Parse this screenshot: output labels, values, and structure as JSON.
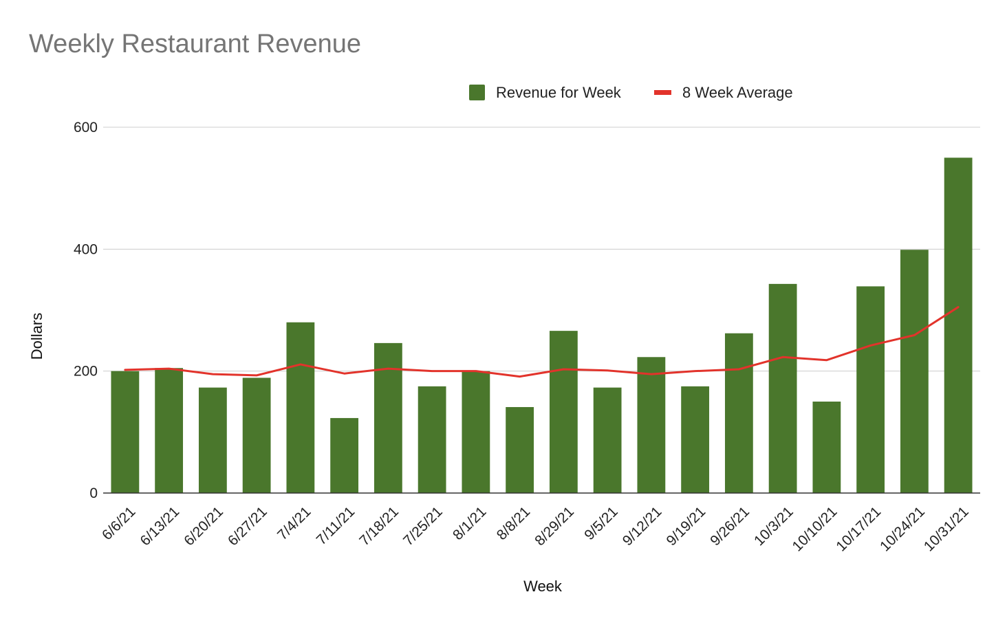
{
  "chart_data": {
    "type": "bar",
    "title": "Weekly Restaurant Revenue",
    "xlabel": "Week",
    "ylabel": "Dollars",
    "ylim": [
      0,
      600
    ],
    "yticks": [
      0,
      200,
      400,
      600
    ],
    "grid": true,
    "legend_position": "top",
    "categories": [
      "6/6/21",
      "6/13/21",
      "6/20/21",
      "6/27/21",
      "7/4/21",
      "7/11/21",
      "7/18/21",
      "7/25/21",
      "8/1/21",
      "8/8/21",
      "8/29/21",
      "9/5/21",
      "9/12/21",
      "9/19/21",
      "9/26/21",
      "10/3/21",
      "10/10/21",
      "10/17/21",
      "10/24/21",
      "10/31/21"
    ],
    "series": [
      {
        "name": "Revenue for Week",
        "type": "bar",
        "color": "#4a772c",
        "values": [
          200,
          205,
          173,
          189,
          280,
          123,
          246,
          175,
          200,
          141,
          266,
          173,
          223,
          175,
          262,
          343,
          150,
          339,
          399,
          550
        ]
      },
      {
        "name": "8 Week Average",
        "type": "line",
        "color": "#e2332b",
        "values": [
          202,
          204,
          195,
          193,
          211,
          196,
          204,
          200,
          200,
          191,
          203,
          201,
          195,
          200,
          203,
          223,
          218,
          242,
          259,
          305
        ]
      }
    ]
  }
}
